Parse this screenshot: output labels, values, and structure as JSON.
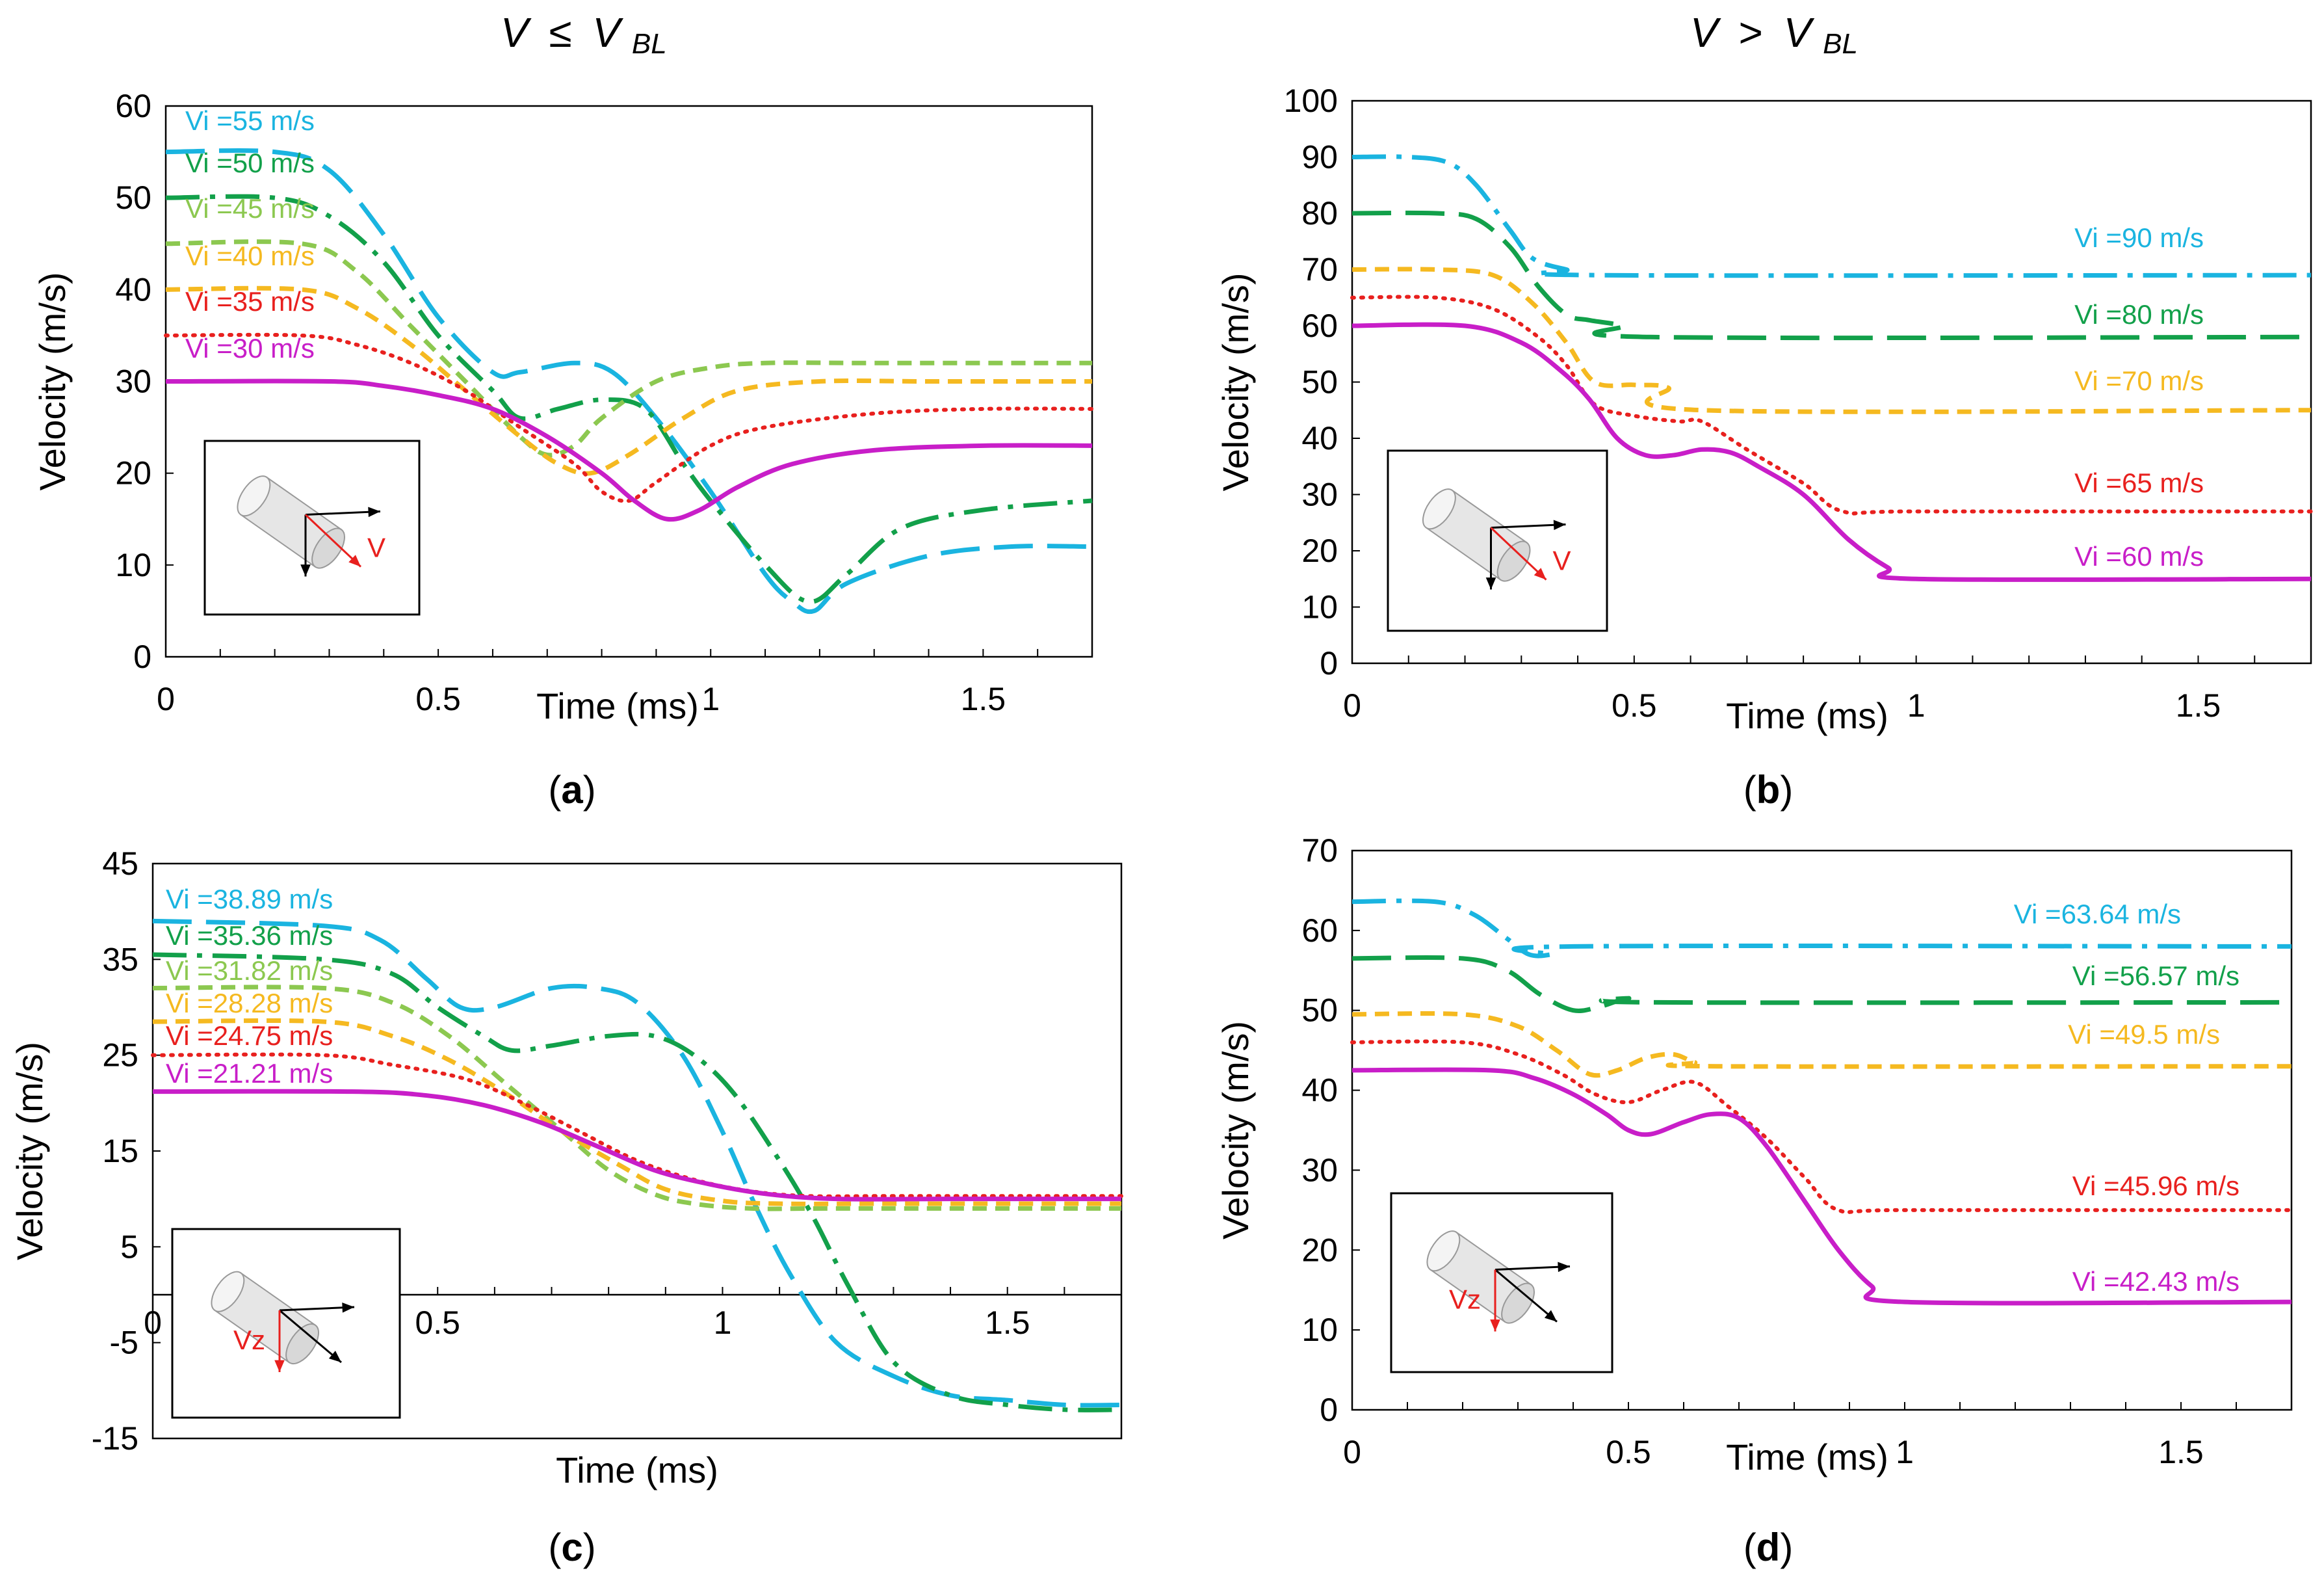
{
  "header": {
    "left": {
      "v": "V",
      "rel": "≤",
      "vb": "V",
      "sub": "BL"
    },
    "right": {
      "v": "V",
      "rel": ">",
      "vb": "V",
      "sub": "BL"
    }
  },
  "colors": {
    "cyan": "#1ab4e0",
    "dark_green": "#12a04a",
    "light_green": "#8cc850",
    "orange": "#f5b920",
    "red": "#e8201e",
    "magenta": "#c81ec8"
  },
  "icons": [
    "cylinder-icon",
    "arrow-icon"
  ],
  "chart_data": [
    {
      "id": "a",
      "type": "line",
      "caption": "a",
      "xlabel": "Time (ms)",
      "ylabel": "Velocity (m/s)",
      "xlim": [
        0,
        1.7
      ],
      "ylim": [
        0,
        60
      ],
      "xticks": [
        "0",
        "0.5",
        "1",
        "1.5"
      ],
      "yticks": [
        "0",
        "10",
        "20",
        "30",
        "40",
        "50",
        "60"
      ],
      "inset_label": "V",
      "series": [
        {
          "name": "Vi =55 m/s",
          "color": "cyan",
          "style": "longdash",
          "x": [
            0,
            0.2,
            0.3,
            0.4,
            0.5,
            0.6,
            0.65,
            0.75,
            0.82,
            0.9,
            1.0,
            1.1,
            1.15,
            1.19,
            1.25,
            1.4,
            1.55,
            1.7
          ],
          "y": [
            55,
            55,
            53,
            46,
            37,
            31,
            31,
            32,
            31,
            26,
            18,
            9,
            6,
            5,
            8,
            11,
            12,
            12
          ]
        },
        {
          "name": "Vi =50 m/s",
          "color": "dark_green",
          "style": "dashdot",
          "x": [
            0,
            0.2,
            0.3,
            0.4,
            0.5,
            0.6,
            0.65,
            0.72,
            0.8,
            0.88,
            0.95,
            1.0,
            1.1,
            1.18,
            1.25,
            1.35,
            1.5,
            1.7
          ],
          "y": [
            50,
            50,
            48,
            43,
            35,
            29,
            26,
            27,
            28,
            27,
            21,
            17,
            10,
            6,
            9,
            14,
            16,
            17
          ]
        },
        {
          "name": "Vi =45 m/s",
          "color": "light_green",
          "style": "shortdash",
          "x": [
            0,
            0.25,
            0.35,
            0.45,
            0.55,
            0.65,
            0.7,
            0.75,
            0.8,
            0.9,
            1.0,
            1.1,
            1.3,
            1.7
          ],
          "y": [
            45,
            45,
            42,
            36,
            30,
            24,
            22,
            23,
            26,
            30,
            31.5,
            32,
            32,
            32
          ]
        },
        {
          "name": "Vi =40 m/s",
          "color": "orange",
          "style": "shortdash",
          "x": [
            0,
            0.25,
            0.35,
            0.45,
            0.55,
            0.65,
            0.72,
            0.78,
            0.85,
            0.95,
            1.05,
            1.2,
            1.4,
            1.7
          ],
          "y": [
            40,
            40,
            38,
            34,
            29,
            24,
            21,
            20,
            22,
            26,
            29,
            30,
            30,
            30
          ]
        },
        {
          "name": "Vi =35 m/s",
          "color": "red",
          "style": "dotted",
          "x": [
            0,
            0.25,
            0.35,
            0.45,
            0.55,
            0.65,
            0.75,
            0.8,
            0.85,
            0.9,
            1.0,
            1.1,
            1.3,
            1.5,
            1.7
          ],
          "y": [
            35,
            35,
            34,
            32,
            29,
            25,
            21,
            18,
            17,
            19,
            23,
            25,
            26.5,
            27,
            27
          ]
        },
        {
          "name": "Vi =30 m/s",
          "color": "magenta",
          "style": "solid",
          "x": [
            0,
            0.3,
            0.4,
            0.5,
            0.6,
            0.7,
            0.8,
            0.86,
            0.92,
            0.98,
            1.05,
            1.15,
            1.3,
            1.5,
            1.7
          ],
          "y": [
            30,
            30,
            29.5,
            28.5,
            27,
            24,
            20,
            17,
            15,
            16,
            18.5,
            21,
            22.5,
            23,
            23
          ]
        }
      ]
    },
    {
      "id": "b",
      "type": "line",
      "caption": "b",
      "xlabel": "Time (ms)",
      "ylabel": "Velocity (m/s)",
      "xlim": [
        0,
        1.7
      ],
      "ylim": [
        0,
        100
      ],
      "xticks": [
        "0",
        "0.5",
        "1",
        "1.5"
      ],
      "yticks": [
        "0",
        "10",
        "20",
        "30",
        "40",
        "50",
        "60",
        "70",
        "80",
        "90",
        "100"
      ],
      "inset_label": "V",
      "series": [
        {
          "name": "Vi =90 m/s",
          "color": "cyan",
          "style": "dashdot",
          "x": [
            0,
            0.1,
            0.17,
            0.22,
            0.28,
            0.32,
            0.38,
            0.44,
            1.7
          ],
          "y": [
            90,
            90,
            89,
            85,
            77,
            72,
            70,
            69,
            69
          ]
        },
        {
          "name": "Vi =80 m/s",
          "color": "dark_green",
          "style": "longdash",
          "x": [
            0,
            0.15,
            0.22,
            0.28,
            0.33,
            0.38,
            0.42,
            0.48,
            0.53,
            1.7
          ],
          "y": [
            80,
            80,
            79,
            74,
            67,
            62,
            61,
            60,
            58,
            58
          ]
        },
        {
          "name": "Vi =70 m/s",
          "color": "orange",
          "style": "shortdash",
          "x": [
            0,
            0.15,
            0.25,
            0.32,
            0.38,
            0.43,
            0.5,
            0.56,
            0.62,
            1.7
          ],
          "y": [
            70,
            70,
            69,
            64,
            57,
            50,
            49.5,
            49,
            45,
            45
          ]
        },
        {
          "name": "Vi =65 m/s",
          "color": "red",
          "style": "dotted",
          "x": [
            0,
            0.15,
            0.25,
            0.33,
            0.38,
            0.43,
            0.5,
            0.58,
            0.62,
            0.7,
            0.8,
            0.87,
            1.0,
            1.7
          ],
          "y": [
            65,
            65,
            63,
            58,
            53,
            46,
            44,
            43,
            43,
            38,
            32,
            27,
            27,
            27
          ]
        },
        {
          "name": "Vi =60 m/s",
          "color": "magenta",
          "style": "solid",
          "x": [
            0,
            0.2,
            0.3,
            0.37,
            0.42,
            0.47,
            0.52,
            0.57,
            0.62,
            0.67,
            0.72,
            0.8,
            0.88,
            0.95,
            1.0,
            1.7
          ],
          "y": [
            60,
            60,
            57,
            52,
            47,
            40,
            37,
            37,
            38,
            37.5,
            35,
            30,
            22,
            17,
            15,
            15
          ]
        }
      ]
    },
    {
      "id": "c",
      "type": "line",
      "caption": "c",
      "xlabel": "Time (ms)",
      "ylabel": "Velocity (m/s)",
      "xlim": [
        0,
        1.7
      ],
      "ylim": [
        -15,
        45
      ],
      "xticks": [
        "0",
        "0.5",
        "1",
        "1.5"
      ],
      "yticks": [
        "-15",
        "-5",
        "5",
        "15",
        "25",
        "35",
        "45"
      ],
      "inset_label": "Vz",
      "series": [
        {
          "name": "Vi =38.89 m/s",
          "color": "cyan",
          "style": "longdash",
          "x": [
            0,
            0.3,
            0.4,
            0.48,
            0.54,
            0.6,
            0.7,
            0.78,
            0.85,
            0.93,
            1.0,
            1.06,
            1.12,
            1.2,
            1.3,
            1.4,
            1.5,
            1.6,
            1.7
          ],
          "y": [
            39,
            38.5,
            37,
            33,
            30,
            30,
            32,
            32,
            30.5,
            25,
            17,
            9,
            2,
            -5,
            -8.5,
            -10.5,
            -11,
            -11.5,
            -11.5
          ]
        },
        {
          "name": "Vi =35.36 m/s",
          "color": "dark_green",
          "style": "dashdot",
          "x": [
            0,
            0.3,
            0.42,
            0.5,
            0.58,
            0.63,
            0.7,
            0.8,
            0.88,
            0.95,
            1.02,
            1.1,
            1.16,
            1.22,
            1.3,
            1.4,
            1.5,
            1.6,
            1.7
          ],
          "y": [
            35.5,
            35,
            33.5,
            30,
            27,
            25.5,
            26,
            27,
            27,
            25,
            21,
            14,
            8,
            1,
            -7,
            -10.5,
            -11.5,
            -12,
            -12
          ]
        },
        {
          "name": "Vi =31.82 m/s",
          "color": "light_green",
          "style": "shortdash",
          "x": [
            0,
            0.3,
            0.42,
            0.52,
            0.62,
            0.72,
            0.8,
            0.88,
            0.95,
            1.05,
            1.2,
            1.7
          ],
          "y": [
            32,
            32,
            30.5,
            27,
            22,
            17,
            13,
            10.5,
            9.5,
            9,
            9,
            9
          ]
        },
        {
          "name": "Vi =28.28 m/s",
          "color": "orange",
          "style": "shortdash",
          "x": [
            0,
            0.3,
            0.42,
            0.52,
            0.62,
            0.72,
            0.82,
            0.9,
            1.0,
            1.1,
            1.3,
            1.7
          ],
          "y": [
            28.5,
            28.5,
            27,
            24.5,
            21,
            17,
            13.5,
            11,
            9.8,
            9.5,
            9.5,
            9.5
          ]
        },
        {
          "name": "Vi =24.75 m/s",
          "color": "red",
          "style": "dotted",
          "x": [
            0,
            0.3,
            0.42,
            0.55,
            0.65,
            0.75,
            0.85,
            0.95,
            1.05,
            1.15,
            1.3,
            1.7
          ],
          "y": [
            25,
            25,
            24,
            22.5,
            20,
            17,
            14,
            12,
            10.8,
            10.3,
            10.3,
            10.3
          ]
        },
        {
          "name": "Vi =21.21 m/s",
          "color": "magenta",
          "style": "solid",
          "x": [
            0,
            0.35,
            0.48,
            0.58,
            0.68,
            0.78,
            0.88,
            0.98,
            1.08,
            1.2,
            1.4,
            1.7
          ],
          "y": [
            21.2,
            21.2,
            20.8,
            19.8,
            18,
            15.5,
            13,
            11.5,
            10.5,
            10,
            10,
            10
          ]
        }
      ]
    },
    {
      "id": "d",
      "type": "line",
      "caption": "d",
      "xlabel": "Time (ms)",
      "ylabel": "Velocity (m/s)",
      "xlim": [
        0,
        1.7
      ],
      "ylim": [
        0,
        70
      ],
      "xticks": [
        "0",
        "0.5",
        "1",
        "1.5"
      ],
      "yticks": [
        "0",
        "10",
        "20",
        "30",
        "40",
        "50",
        "60",
        "70"
      ],
      "inset_label": "Vz",
      "series": [
        {
          "name": "Vi =63.64 m/s",
          "color": "cyan",
          "style": "dashdot",
          "x": [
            0,
            0.15,
            0.22,
            0.28,
            0.32,
            0.36,
            0.4,
            1.7
          ],
          "y": [
            63.6,
            63.6,
            62,
            59,
            57,
            57,
            58,
            58
          ]
        },
        {
          "name": "Vi =56.57 m/s",
          "color": "dark_green",
          "style": "longdash",
          "x": [
            0,
            0.2,
            0.28,
            0.34,
            0.4,
            0.45,
            0.5,
            0.55,
            1.7
          ],
          "y": [
            56.5,
            56.5,
            55,
            52,
            50,
            50.5,
            51.5,
            51,
            51
          ]
        },
        {
          "name": "Vi =49.5 m/s",
          "color": "orange",
          "style": "shortdash",
          "x": [
            0,
            0.2,
            0.3,
            0.37,
            0.43,
            0.48,
            0.53,
            0.58,
            0.62,
            0.66,
            1.7
          ],
          "y": [
            49.5,
            49.5,
            48,
            45,
            42,
            42.5,
            44,
            44.5,
            43.5,
            43,
            43
          ]
        },
        {
          "name": "Vi =45.96 m/s",
          "color": "red",
          "style": "dotted",
          "x": [
            0,
            0.2,
            0.3,
            0.38,
            0.44,
            0.5,
            0.56,
            0.62,
            0.68,
            0.75,
            0.82,
            0.88,
            1.0,
            1.7
          ],
          "y": [
            46,
            46,
            44.5,
            42,
            39.5,
            38.5,
            40,
            41,
            38,
            34,
            29,
            25,
            25,
            25
          ]
        },
        {
          "name": "Vi =42.43 m/s",
          "color": "magenta",
          "style": "solid",
          "x": [
            0,
            0.25,
            0.33,
            0.4,
            0.46,
            0.5,
            0.54,
            0.6,
            0.65,
            0.7,
            0.75,
            0.82,
            0.88,
            0.94,
            1.0,
            1.7
          ],
          "y": [
            42.5,
            42.5,
            41.5,
            39.5,
            37,
            35,
            34.5,
            36,
            37,
            36.5,
            33,
            26,
            20,
            15.5,
            13.5,
            13.5
          ]
        }
      ]
    }
  ]
}
